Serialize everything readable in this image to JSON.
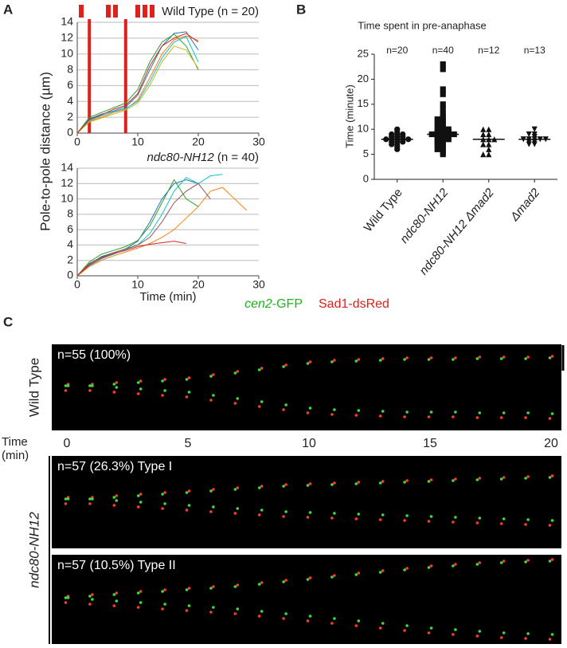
{
  "panel_labels": [
    "A",
    "B",
    "C"
  ],
  "chart_data": [
    {
      "type": "line",
      "title": "Wild Type (n = 20)",
      "y_label": "Pole-to-pole distance (µm)",
      "x": [
        0,
        2,
        4,
        6,
        8,
        10,
        12,
        14,
        16,
        18,
        20,
        22,
        24,
        26,
        28
      ],
      "xlim": [
        0,
        30
      ],
      "xticks": [
        0,
        10,
        20,
        30
      ],
      "ylim": [
        0,
        14
      ],
      "yticks": [
        0,
        2,
        4,
        6,
        8,
        10,
        12,
        14
      ],
      "grid": true,
      "vlines": [
        2,
        8
      ],
      "vline_color": "#e0201b",
      "series": [
        {
          "color": "#1f77b4",
          "values": [
            0,
            1.8,
            2.4,
            2.8,
            3.3,
            4.8,
            8,
            11,
            12.6,
            12.8,
            10.5,
            null,
            null,
            null,
            null
          ]
        },
        {
          "color": "#ff7f0e",
          "values": [
            0,
            1.5,
            2.0,
            2.6,
            3.0,
            4.2,
            7,
            10,
            11.8,
            12.3,
            11.7,
            null,
            null,
            null,
            null
          ]
        },
        {
          "color": "#2ca02c",
          "values": [
            0,
            2.0,
            2.6,
            3.2,
            3.8,
            5.5,
            9,
            11.5,
            12.5,
            11,
            8,
            null,
            null,
            null,
            null
          ]
        },
        {
          "color": "#17becf",
          "values": [
            0,
            1.6,
            2.2,
            2.7,
            3.1,
            4,
            6.5,
            9.5,
            11.5,
            12.2,
            9,
            null,
            null,
            null,
            null
          ]
        },
        {
          "color": "#bcbd22",
          "values": [
            0,
            1.4,
            1.9,
            2.4,
            2.9,
            3.8,
            6,
            9,
            11,
            10.5,
            8.2,
            null,
            null,
            null,
            null
          ]
        },
        {
          "color": "#d62728",
          "values": [
            0,
            1.7,
            2.3,
            3,
            3.5,
            5,
            8.5,
            11,
            12,
            12.6,
            11.5,
            null,
            null,
            null,
            null
          ]
        }
      ]
    },
    {
      "type": "line",
      "title_italic": "ndc80-NH12",
      "title": "(n = 40)",
      "x_label": "Time (min)",
      "x": [
        0,
        2,
        4,
        6,
        8,
        10,
        12,
        14,
        16,
        18,
        20,
        22,
        24,
        26,
        28
      ],
      "xlim": [
        0,
        30
      ],
      "xticks": [
        0,
        10,
        20,
        30
      ],
      "ylim": [
        0,
        14
      ],
      "yticks": [
        0,
        2,
        4,
        6,
        8,
        10,
        12,
        14
      ],
      "grid": true,
      "series": [
        {
          "color": "#1f77b4",
          "values": [
            0,
            1.5,
            2.5,
            3,
            3.5,
            4.5,
            7,
            10,
            12,
            12.5,
            12,
            null,
            null,
            null,
            null
          ]
        },
        {
          "color": "#17becf",
          "values": [
            0,
            1.3,
            2.2,
            2.8,
            3.4,
            4,
            5.5,
            8,
            11,
            12.8,
            12,
            13,
            13.2,
            null,
            null
          ]
        },
        {
          "color": "#2ca02c",
          "values": [
            0,
            1.8,
            2.8,
            3.3,
            3.8,
            4.6,
            6.5,
            9.5,
            12.5,
            10,
            9,
            null,
            null,
            null,
            null
          ]
        },
        {
          "color": "#ff7f0e",
          "values": [
            0,
            1.2,
            2,
            2.6,
            3.1,
            3.6,
            4.2,
            5,
            6,
            7.5,
            9,
            11,
            11.5,
            10,
            8.5
          ]
        },
        {
          "color": "#8c564b",
          "values": [
            0,
            1.6,
            2.4,
            3,
            3.5,
            4,
            5,
            7,
            9.5,
            11,
            12,
            10,
            null,
            null,
            null
          ]
        },
        {
          "color": "#d62728",
          "values": [
            0,
            1.4,
            2.3,
            2.9,
            3.3,
            3.8,
            4.1,
            4.3,
            4.5,
            4.2,
            null,
            null,
            null,
            null,
            null
          ]
        }
      ]
    },
    {
      "type": "strip",
      "title": "Time spent in pre-anaphase",
      "y_label": "Time (minute)",
      "ylim": [
        0,
        25
      ],
      "yticks": [
        0,
        5,
        10,
        15,
        20,
        25
      ],
      "groups": [
        {
          "category": "Wild Type",
          "n_label": "n=20",
          "marker": "circle",
          "median": 8,
          "values": [
            6,
            6.5,
            7,
            7,
            7.5,
            7.5,
            7.5,
            8,
            8,
            8,
            8,
            8,
            8.5,
            8.5,
            8.5,
            9,
            9,
            9,
            9.5,
            10
          ]
        },
        {
          "category": "ndc80-NH12",
          "n_label": "n=40",
          "marker": "square",
          "median": 9,
          "values": [
            5,
            5.5,
            6,
            6,
            6.5,
            7,
            7,
            7.5,
            7.5,
            8,
            8,
            8,
            8.5,
            8.5,
            8.5,
            9,
            9,
            9,
            9,
            9,
            9.5,
            9.5,
            9.5,
            10,
            10,
            10,
            10.5,
            11,
            11,
            11.5,
            12,
            12,
            12.5,
            13,
            14,
            15,
            17,
            18,
            22,
            23
          ]
        },
        {
          "category": "ndc80-NH12 Δmad2",
          "n_label": "n=12",
          "marker": "triangle",
          "median": 8,
          "values": [
            5,
            5,
            6,
            7,
            7,
            8,
            8,
            8,
            9,
            9,
            10,
            10
          ]
        },
        {
          "category": "Δmad2",
          "n_label": "n=13",
          "marker": "triangle-down",
          "median": 8,
          "values": [
            7,
            7,
            7.5,
            7.5,
            8,
            8,
            8,
            8,
            8,
            8.5,
            9,
            9,
            10
          ]
        }
      ]
    }
  ],
  "panel_c": {
    "channel_1_italic": "cen2",
    "channel_1": "-GFP",
    "channel_1_color": "#1db31d",
    "channel_2": "Sad1-dsRed",
    "channel_2_color": "#e0201b",
    "wild_type_label": "Wild Type",
    "mutant_label": "ndc80-NH12",
    "time_label": "Time",
    "time_unit": "(min)",
    "time_axis": {
      "xlim": [
        0,
        20
      ],
      "xticks": [
        0,
        5,
        10,
        15,
        20
      ]
    },
    "rows": [
      "n=55 (100%)",
      "n=57 (26.3%) Type I",
      "n=57 (10.5%) Type II"
    ]
  }
}
